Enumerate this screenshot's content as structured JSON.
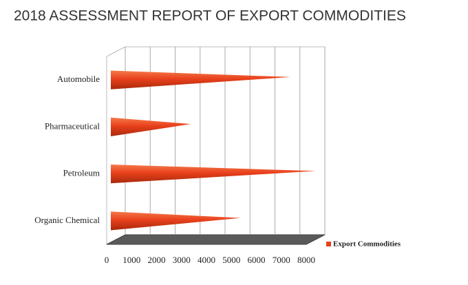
{
  "chart_data": {
    "type": "bar",
    "title": "2018 ASSESSMENT REPORT OF EXPORT COMMODITIES",
    "categories": [
      "Automobile",
      "Pharmaceutical",
      "Petroleum",
      "Organic Chemical"
    ],
    "series": [
      {
        "name": "Export Commodities",
        "color": "#e8401c",
        "values": [
          7000,
          3000,
          8000,
          5000
        ]
      }
    ],
    "xlim": [
      0,
      8000
    ],
    "xticks": [
      0,
      1000,
      2000,
      3000,
      4000,
      5000,
      6000,
      7000,
      8000
    ],
    "grid": true
  }
}
